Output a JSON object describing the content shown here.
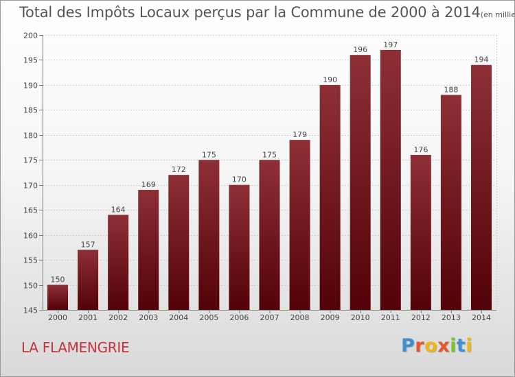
{
  "chart_data": {
    "type": "bar",
    "title": "Total des Impôts Locaux perçus par la Commune de 2000 à 2014",
    "unit_note": "(en milliers d'€)",
    "categories": [
      "2000",
      "2001",
      "2002",
      "2003",
      "2004",
      "2005",
      "2006",
      "2007",
      "2008",
      "2009",
      "2010",
      "2011",
      "2012",
      "2013",
      "2014"
    ],
    "values": [
      150,
      157,
      164,
      169,
      172,
      175,
      170,
      175,
      179,
      190,
      196,
      197,
      176,
      188,
      194
    ],
    "ylim": [
      145,
      200
    ],
    "yticks": [
      145,
      150,
      155,
      160,
      165,
      170,
      175,
      180,
      185,
      190,
      195,
      200
    ],
    "xlabel": "",
    "ylabel": "",
    "grid": true,
    "bar_color": "#7a1c22"
  },
  "commune": "LA FLAMENGRIE",
  "logo": {
    "text": "Proxiti",
    "letters": [
      "P",
      "r",
      "o",
      "x",
      "i",
      "t",
      "i"
    ]
  }
}
